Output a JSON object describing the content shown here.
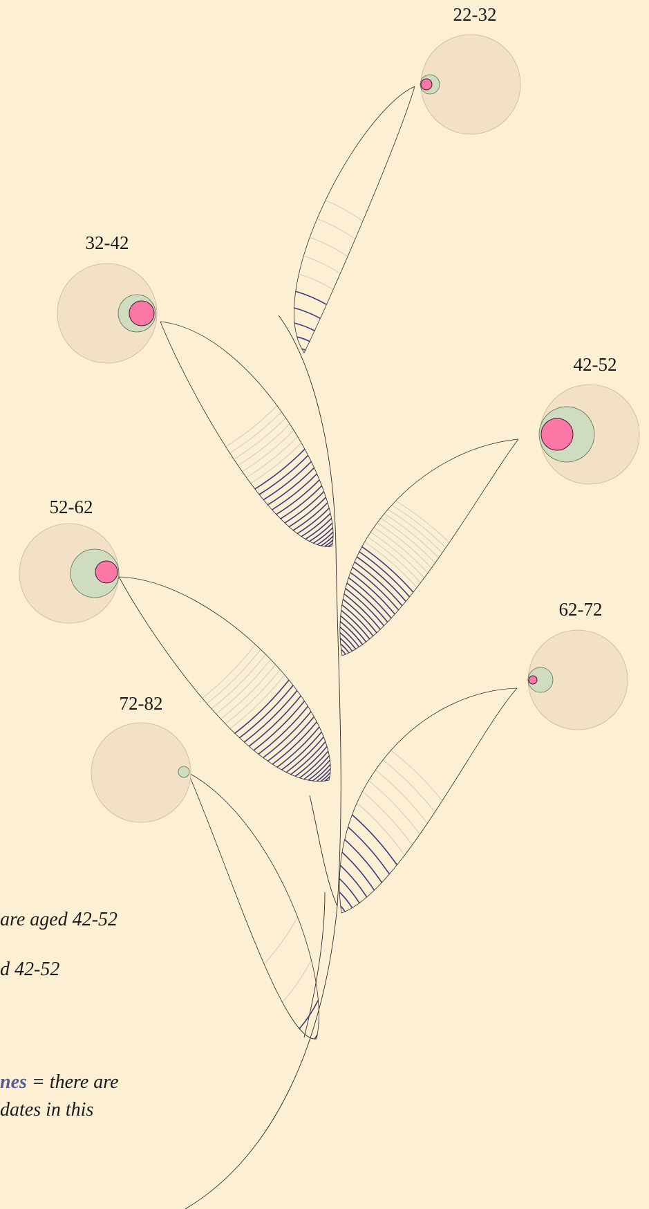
{
  "colors": {
    "background": "#fdefd4",
    "outer_circle": "#f2e1c6",
    "green_circle": "#d0dcc0",
    "pink_circle": "#fc78a6",
    "stripe_dark": "#3b3a7a",
    "stripe_light": "#d8cfc6",
    "stem": "#2b2b2b"
  },
  "groups": [
    {
      "label": "22-32"
    },
    {
      "label": "32-42"
    },
    {
      "label": "42-52"
    },
    {
      "label": "52-62"
    },
    {
      "label": "62-72"
    },
    {
      "label": "72-82"
    }
  ],
  "legend": {
    "line1": "are aged 42-52",
    "line2": "d 42-52",
    "line3_highlight": "nes",
    "line3_rest": " = there are",
    "line4": "dates in this"
  }
}
